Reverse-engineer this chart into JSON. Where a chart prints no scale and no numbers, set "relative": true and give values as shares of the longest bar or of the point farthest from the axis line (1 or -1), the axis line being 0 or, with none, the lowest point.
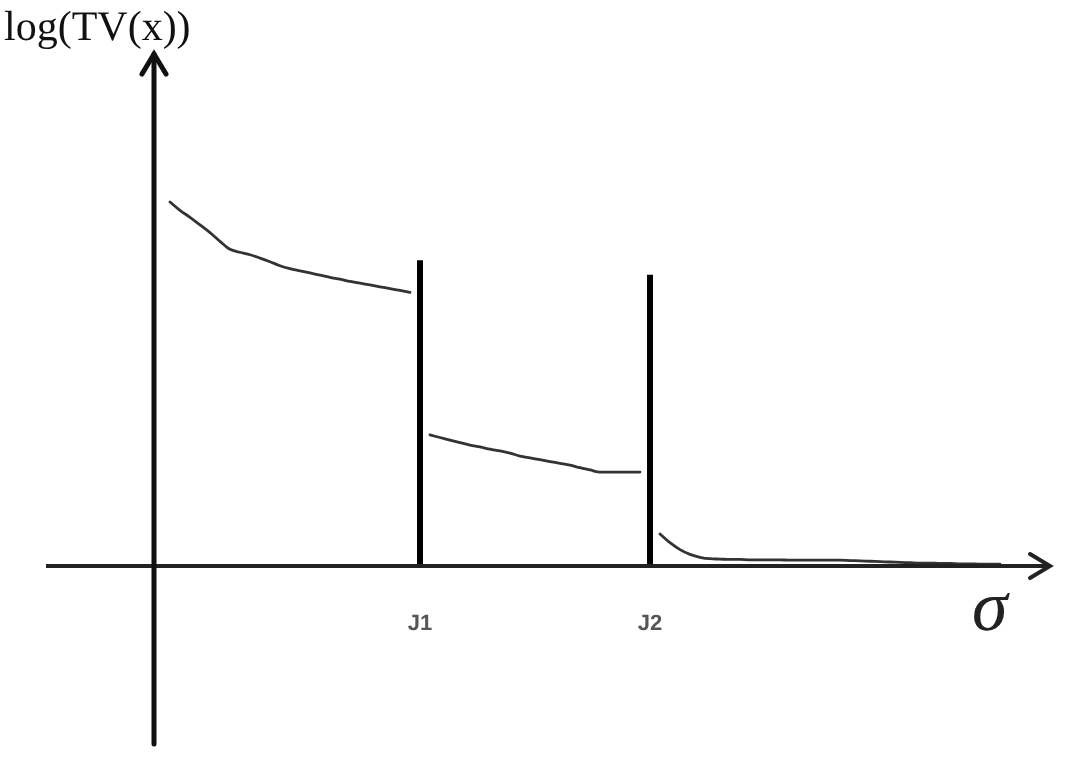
{
  "chart_data": {
    "type": "line",
    "relative": true,
    "xlabel": "σ",
    "ylabel": "log(TV(x))",
    "categories": [
      null,
      null,
      null,
      null,
      null,
      null,
      null,
      null,
      null,
      null,
      null,
      null,
      null,
      null,
      null,
      null,
      null,
      null,
      null,
      null,
      null,
      null,
      null,
      null,
      null,
      "J1",
      null,
      null,
      null,
      null,
      null,
      null,
      null,
      null,
      null,
      null,
      null,
      null,
      null,
      null,
      null,
      null,
      null,
      null,
      null,
      null,
      null,
      null,
      "J2",
      null,
      null,
      null,
      null,
      null,
      null,
      null,
      null,
      null,
      null,
      null,
      null,
      null,
      null,
      null,
      null,
      null,
      null,
      null,
      null,
      null,
      null,
      null,
      null,
      null,
      null,
      null,
      null,
      null,
      null,
      null,
      null,
      null,
      null,
      null
    ],
    "series": [
      {
        "color": "#333333",
        "values": [
          1,
          0.977,
          0.958,
          0.937,
          0.916,
          0.892,
          0.87,
          0.862,
          0.855,
          0.846,
          0.836,
          0.825,
          0.817,
          0.811,
          0.805,
          0.799,
          0.793,
          0.788,
          0.782,
          0.777,
          0.772,
          0.767,
          0.762,
          0.757,
          0.752,
          null,
          0.36,
          0.353,
          0.346,
          0.339,
          0.332,
          0.327,
          0.321,
          0.316,
          0.31,
          0.302,
          0.297,
          0.292,
          0.287,
          0.282,
          0.277,
          0.27,
          0.264,
          0.258,
          0.258,
          0.258,
          0.258,
          0.258,
          null,
          0.088,
          0.064,
          0.045,
          0.032,
          0.024,
          0.02,
          0.019,
          0.018,
          0.018,
          0.017,
          0.017,
          0.017,
          0.017,
          0.016,
          0.016,
          0.016,
          0.016,
          0.016,
          0.016,
          0.015,
          0.014,
          0.013,
          0.012,
          0.011,
          0.01,
          0.009,
          0.008,
          0.008,
          0.007,
          0.007,
          0.006,
          0.006,
          0.005,
          0.005,
          0.005
        ]
      },
      {
        "type": "bar",
        "color": "#000000",
        "values": [
          null,
          null,
          null,
          null,
          null,
          null,
          null,
          null,
          null,
          null,
          null,
          null,
          null,
          null,
          null,
          null,
          null,
          null,
          null,
          null,
          null,
          null,
          null,
          null,
          null,
          0.84,
          null,
          null,
          null,
          null,
          null,
          null,
          null,
          null,
          null,
          null,
          null,
          null,
          null,
          null,
          null,
          null,
          null,
          null,
          null,
          null,
          null,
          null,
          0.8,
          null,
          null,
          null,
          null,
          null,
          null,
          null,
          null,
          null,
          null,
          null,
          null,
          null,
          null,
          null,
          null,
          null,
          null,
          null,
          null,
          null,
          null,
          null,
          null,
          null,
          null,
          null,
          null,
          null,
          null,
          null,
          null,
          null,
          null,
          null
        ]
      }
    ]
  }
}
